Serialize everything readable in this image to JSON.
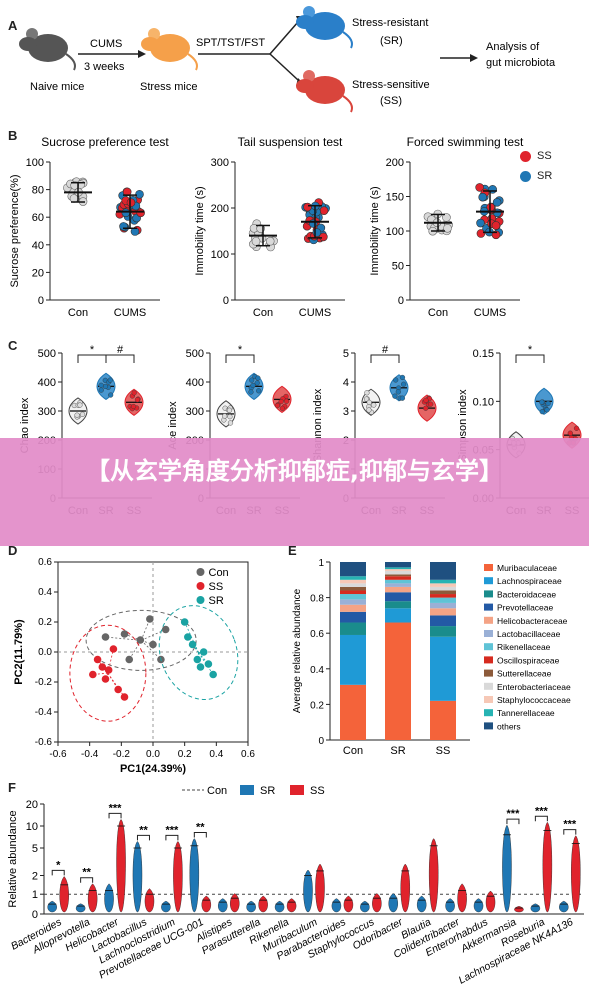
{
  "panelA": {
    "letter": "A",
    "naive_label": "Naive mice",
    "cums_label": "CUMS",
    "weeks_label": "3 weeks",
    "stress_label": "Stress mice",
    "tests_label": "SPT/TST/FST",
    "sr_title": "Stress-resistant",
    "sr_abbr": "(SR)",
    "ss_title": "Stress-sensitive",
    "ss_abbr": "(SS)",
    "analysis_line1": "Analysis of",
    "analysis_line2": "gut microbiota"
  },
  "panelB": {
    "letter": "B",
    "legend": [
      {
        "name": "SS",
        "color": "#e0232c"
      },
      {
        "name": "SR",
        "color": "#1f77b4"
      }
    ]
  },
  "panelC": {
    "letter": "C"
  },
  "panelD": {
    "letter": "D"
  },
  "panelE": {
    "letter": "E"
  },
  "panelF": {
    "letter": "F"
  },
  "banner": {
    "text": "【从玄学角度分析抑郁症,抑郁与玄学】"
  },
  "colors": {
    "con": "#888888",
    "sr": "#1f77b4",
    "ss": "#e0232c"
  },
  "chart_data": [
    {
      "id": "B1",
      "type": "scatter",
      "title": "Sucrose preference test",
      "ylabel": "Sucrose preference(%)",
      "categories": [
        "Con",
        "CUMS"
      ],
      "ylim": [
        0,
        100
      ],
      "yticks": [
        0,
        20,
        40,
        60,
        80,
        100
      ],
      "series": [
        {
          "name": "Con",
          "mean": 78,
          "sd": 7
        },
        {
          "name": "CUMS",
          "mean": 64,
          "sd": 12
        }
      ]
    },
    {
      "id": "B2",
      "type": "scatter",
      "title": "Tail suspension test",
      "ylabel": "Immobility time (s)",
      "categories": [
        "Con",
        "CUMS"
      ],
      "ylim": [
        0,
        300
      ],
      "yticks": [
        0,
        100,
        200,
        300
      ],
      "series": [
        {
          "name": "Con",
          "mean": 140,
          "sd": 22
        },
        {
          "name": "CUMS",
          "mean": 170,
          "sd": 35
        }
      ]
    },
    {
      "id": "B3",
      "type": "scatter",
      "title": "Forced swimming test",
      "ylabel": "Immobility time (s)",
      "categories": [
        "Con",
        "CUMS"
      ],
      "ylim": [
        0,
        200
      ],
      "yticks": [
        0,
        50,
        100,
        150,
        200
      ],
      "series": [
        {
          "name": "Con",
          "mean": 112,
          "sd": 12
        },
        {
          "name": "CUMS",
          "mean": 128,
          "sd": 30
        }
      ]
    },
    {
      "id": "C1",
      "type": "violin",
      "ylabel": "Chao index",
      "categories": [
        "Con",
        "SR",
        "SS"
      ],
      "ylim": [
        0,
        500
      ],
      "yticks": [
        0,
        100,
        200,
        300,
        400,
        500
      ],
      "values": [
        300,
        385,
        330
      ],
      "annotations": [
        "*",
        "#"
      ]
    },
    {
      "id": "C2",
      "type": "violin",
      "ylabel": "Ace index",
      "categories": [
        "Con",
        "SR",
        "SS"
      ],
      "ylim": [
        0,
        500
      ],
      "yticks": [
        0,
        100,
        200,
        300,
        400,
        500
      ],
      "values": [
        290,
        385,
        340
      ],
      "annotations": [
        "*"
      ]
    },
    {
      "id": "C3",
      "type": "violin",
      "ylabel": "Shannon index",
      "categories": [
        "Con",
        "SR",
        "SS"
      ],
      "ylim": [
        0,
        5
      ],
      "yticks": [
        0,
        1,
        2,
        3,
        4,
        5
      ],
      "values": [
        3.3,
        3.8,
        3.1
      ],
      "annotations": [
        "#"
      ]
    },
    {
      "id": "C4",
      "type": "violin",
      "ylabel": "Simpson index",
      "categories": [
        "Con",
        "SR",
        "SS"
      ],
      "ylim": [
        0,
        0.15
      ],
      "yticks": [
        "0.00",
        "0.05",
        "0.10",
        "0.15"
      ],
      "values": [
        0.055,
        0.1,
        0.065
      ],
      "annotations": [
        "*"
      ]
    },
    {
      "id": "D",
      "type": "scatter",
      "xlabel": "PC1(24.39%)",
      "ylabel": "PC2(11.79%)",
      "xlim": [
        -0.6,
        0.6
      ],
      "ylim": [
        -0.6,
        0.6
      ],
      "xticks": [
        "-0.6",
        "-0.4",
        "-0.2",
        "0.0",
        "0.2",
        "0.4",
        "0.6"
      ],
      "yticks": [
        "-0.6",
        "-0.4",
        "-0.2",
        "0.0",
        "0.2",
        "0.4",
        "0.6"
      ],
      "legend": "top-right",
      "series": [
        {
          "name": "Con",
          "color": "#666666",
          "points": [
            [
              -0.3,
              0.1
            ],
            [
              -0.18,
              0.12
            ],
            [
              -0.08,
              0.08
            ],
            [
              -0.02,
              0.22
            ],
            [
              0.0,
              0.05
            ],
            [
              0.08,
              0.15
            ],
            [
              -0.15,
              -0.05
            ],
            [
              0.05,
              -0.05
            ]
          ]
        },
        {
          "name": "SS",
          "color": "#e0232c",
          "points": [
            [
              -0.35,
              -0.05
            ],
            [
              -0.32,
              -0.1
            ],
            [
              -0.38,
              -0.15
            ],
            [
              -0.28,
              -0.12
            ],
            [
              -0.25,
              0.02
            ],
            [
              -0.22,
              -0.25
            ],
            [
              -0.18,
              -0.3
            ],
            [
              -0.3,
              -0.18
            ]
          ]
        },
        {
          "name": "SR",
          "color": "#1aa3a3",
          "points": [
            [
              0.2,
              0.2
            ],
            [
              0.22,
              0.1
            ],
            [
              0.28,
              -0.05
            ],
            [
              0.3,
              -0.1
            ],
            [
              0.35,
              -0.08
            ],
            [
              0.38,
              -0.15
            ],
            [
              0.25,
              0.05
            ],
            [
              0.32,
              0.0
            ]
          ]
        }
      ]
    },
    {
      "id": "E",
      "type": "bar",
      "ylabel": "Average relative abundance",
      "categories": [
        "Con",
        "SR",
        "SS"
      ],
      "ylim": [
        0,
        1
      ],
      "yticks": [
        "0",
        "0.2",
        "0.4",
        "0.6",
        "0.8",
        "1"
      ],
      "series": [
        {
          "name": "Muribaculaceae",
          "color": "#f4633a",
          "values": [
            0.31,
            0.66,
            0.22
          ]
        },
        {
          "name": "Lachnospiraceae",
          "color": "#1f9ad6",
          "values": [
            0.28,
            0.08,
            0.36
          ]
        },
        {
          "name": "Bacteroidaceae",
          "color": "#1a8c8c",
          "values": [
            0.07,
            0.04,
            0.06
          ]
        },
        {
          "name": "Prevotellaceae",
          "color": "#2359a5",
          "values": [
            0.06,
            0.05,
            0.06
          ]
        },
        {
          "name": "Helicobacteraceae",
          "color": "#f4a385",
          "values": [
            0.04,
            0.03,
            0.04
          ]
        },
        {
          "name": "Lactobacillaceae",
          "color": "#9ab0d6",
          "values": [
            0.03,
            0.02,
            0.03
          ]
        },
        {
          "name": "Rikenellaceae",
          "color": "#5fc3d6",
          "values": [
            0.03,
            0.02,
            0.03
          ]
        },
        {
          "name": "Oscillospiraceae",
          "color": "#d62a1f",
          "values": [
            0.02,
            0.02,
            0.02
          ]
        },
        {
          "name": "Sutterellaceae",
          "color": "#8c5a3a",
          "values": [
            0.02,
            0.01,
            0.02
          ]
        },
        {
          "name": "Enterobacteriaceae",
          "color": "#d9d9d9",
          "values": [
            0.02,
            0.02,
            0.02
          ]
        },
        {
          "name": "Staphylococcaceae",
          "color": "#f6c8b6",
          "values": [
            0.02,
            0.01,
            0.02
          ]
        },
        {
          "name": "Tannerellaceae",
          "color": "#26b3b3",
          "values": [
            0.02,
            0.01,
            0.02
          ]
        },
        {
          "name": "others",
          "color": "#1f5080",
          "values": [
            0.08,
            0.03,
            0.1
          ]
        }
      ]
    },
    {
      "id": "F",
      "type": "violin",
      "ylabel": "Relative abundance",
      "ylim": [
        0,
        20
      ],
      "yticks": [
        "0",
        "1",
        "2",
        "5",
        "10",
        "20"
      ],
      "legend": [
        {
          "name": "Con",
          "style": "dashed"
        },
        {
          "name": "SR",
          "color": "#1f77b4"
        },
        {
          "name": "SS",
          "color": "#e0232c"
        }
      ],
      "categories": [
        "Bacteroides",
        "Alloprevotella",
        "Helicobacter",
        "Lactobacillus",
        "Lachnoclostridium",
        "Prevotellaceae UCG-001",
        "Alistipes",
        "Parasutterella",
        "Rikenella",
        "Muribaculum",
        "Parabacteroides",
        "Staphylococcus",
        "Odoribacter",
        "Blautia",
        "Colidextribacter",
        "Enterorhabdus",
        "Akkermansia",
        "Roseburia",
        "Lachnospiraceae NK4A136"
      ],
      "sr": [
        0.5,
        0.4,
        1.2,
        5.0,
        0.5,
        5.5,
        0.6,
        0.5,
        0.5,
        2.0,
        0.6,
        0.5,
        0.8,
        0.7,
        0.6,
        0.6,
        8.0,
        0.4,
        0.5
      ],
      "ss": [
        1.5,
        1.2,
        10.0,
        1.0,
        5.0,
        0.7,
        0.8,
        0.7,
        0.6,
        2.5,
        0.7,
        0.8,
        2.5,
        5.5,
        1.2,
        0.9,
        0.3,
        9.0,
        6.0
      ],
      "annotations": [
        "*",
        "**",
        "***",
        "**",
        "***",
        "**",
        "",
        "",
        "",
        "",
        "",
        "",
        "",
        "",
        "",
        "",
        "***",
        "***",
        "***"
      ]
    }
  ]
}
